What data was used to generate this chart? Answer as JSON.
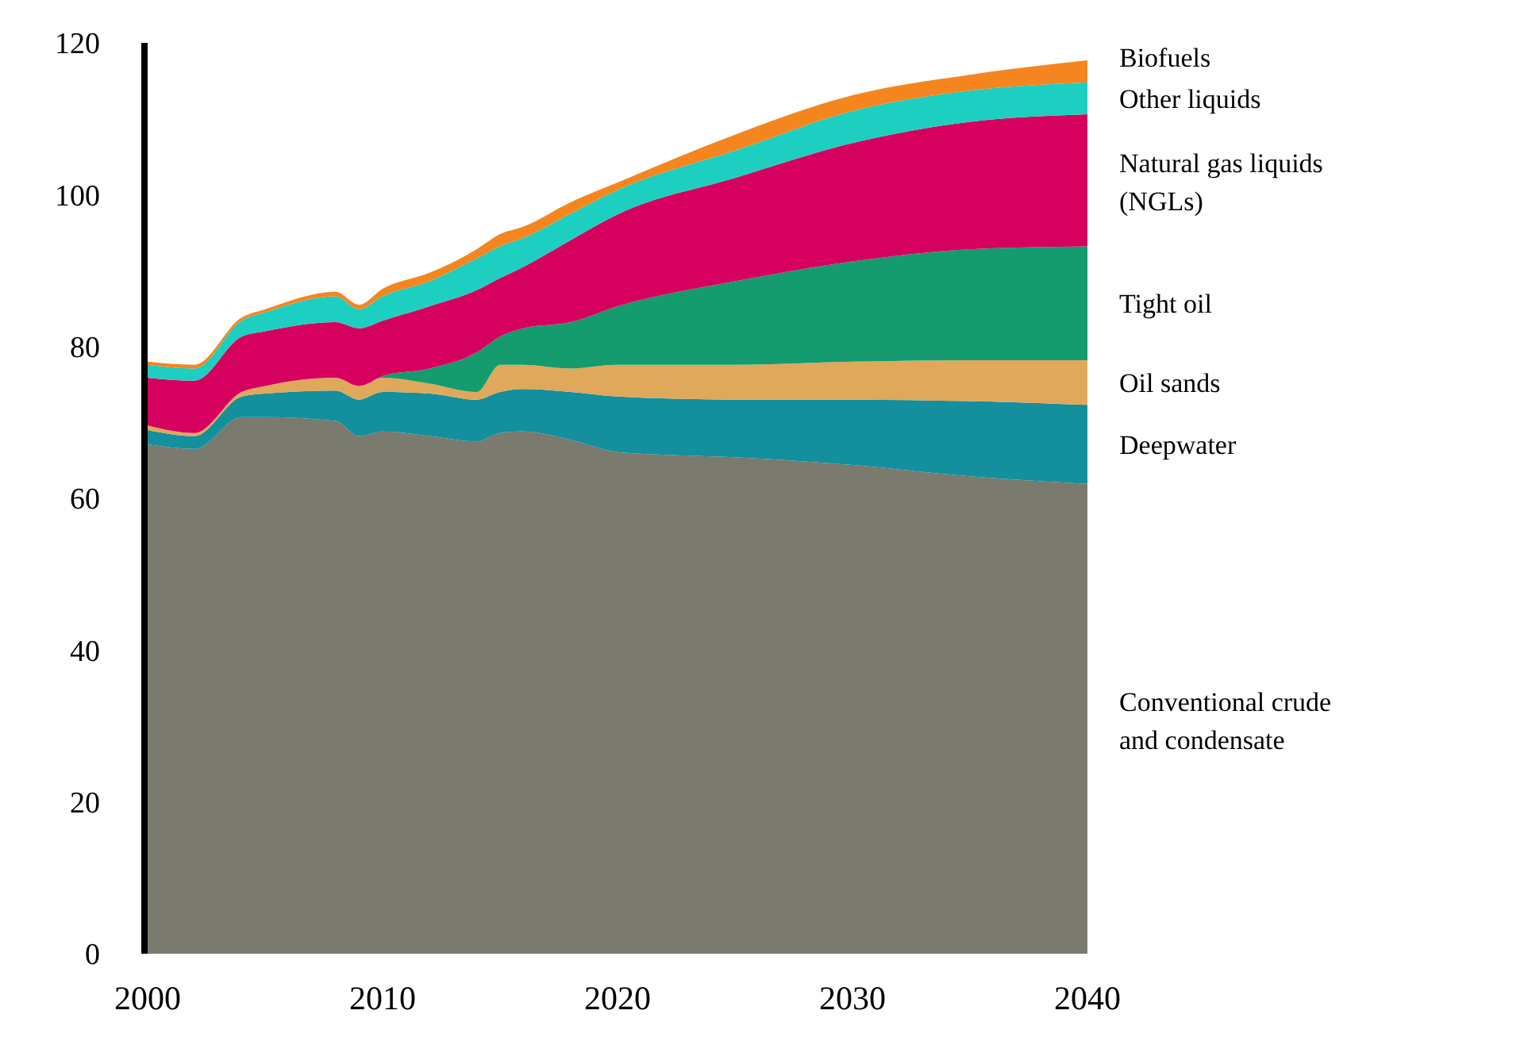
{
  "chart_data": {
    "type": "area",
    "stacked": true,
    "x": [
      2000,
      2002,
      2004,
      2005,
      2008,
      2009,
      2010,
      2012,
      2014,
      2015,
      2016,
      2018,
      2020,
      2025,
      2030,
      2035,
      2040
    ],
    "xlim": [
      2000,
      2040
    ],
    "xticks": [
      2000,
      2010,
      2020,
      2030,
      2040
    ],
    "ylim": [
      0,
      120
    ],
    "yticks": [
      0,
      20,
      40,
      60,
      80,
      100,
      120
    ],
    "series": [
      {
        "name": "Conventional crude and condensate",
        "color": "#7a7a6e",
        "values": [
          67.1,
          66.5,
          70.7,
          70.7,
          70.2,
          68.2,
          68.8,
          68.2,
          67.5,
          68.6,
          68.8,
          67.7,
          66.1,
          65.4,
          64.4,
          62.9,
          61.9
        ]
      },
      {
        "name": "Deepwater",
        "color": "#138f9e",
        "values": [
          1.9,
          1.7,
          2.7,
          3.1,
          4.0,
          4.8,
          5.2,
          5.6,
          5.5,
          5.4,
          5.6,
          6.3,
          7.3,
          7.6,
          8.6,
          9.9,
          10.4
        ]
      },
      {
        "name": "Oil sands",
        "color": "#e0a85a",
        "values": [
          0.6,
          0.4,
          0.6,
          1.0,
          1.7,
          1.8,
          1.9,
          1.3,
          1.0,
          3.6,
          3.2,
          3.1,
          4.2,
          4.6,
          5.0,
          5.4,
          5.9
        ]
      },
      {
        "name": "Tight oil",
        "color": "#149b6e",
        "values": [
          0,
          0,
          0,
          0,
          0,
          0,
          0.2,
          2.0,
          5.2,
          3.7,
          4.8,
          6.1,
          7.7,
          11.0,
          13.2,
          14.6,
          15.0
        ]
      },
      {
        "name": "Natural gas liquids (NGLs)",
        "color": "#d6005f",
        "values": [
          6.3,
          6.9,
          7.3,
          7.2,
          7.3,
          7.6,
          7.3,
          8.2,
          8.2,
          7.7,
          8.1,
          10.8,
          12.1,
          13.6,
          15.6,
          16.8,
          17.4
        ]
      },
      {
        "name": "Other liquids",
        "color": "#1ccfc0",
        "values": [
          1.7,
          1.6,
          2.1,
          2.5,
          3.4,
          2.5,
          3.2,
          3.3,
          4.2,
          4.2,
          3.8,
          3.5,
          3.2,
          3.6,
          4.2,
          4.1,
          4.2
        ]
      },
      {
        "name": "Biofuels",
        "color": "#f5861f",
        "values": [
          0.4,
          0.5,
          0.4,
          0.4,
          0.6,
          0.6,
          1.0,
          1.1,
          1.2,
          1.6,
          1.5,
          1.5,
          1.0,
          2.1,
          2.1,
          2.1,
          2.9
        ]
      }
    ]
  }
}
